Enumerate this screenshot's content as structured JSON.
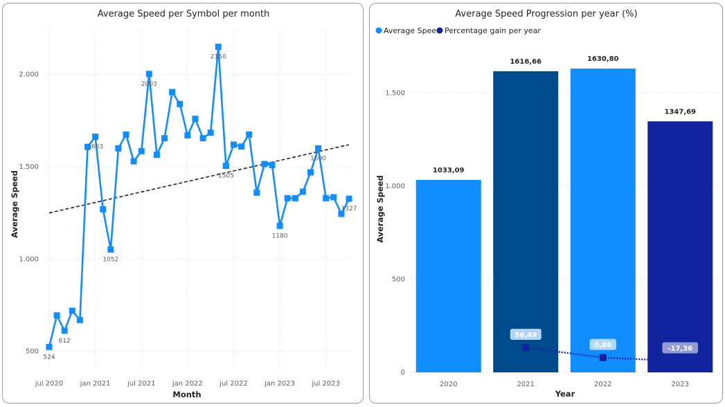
{
  "chart_data": [
    {
      "type": "line",
      "title": "Average Speed per Symbol per month",
      "xlabel": "Month",
      "ylabel": "Average Speed",
      "ylim": [
        450,
        2250
      ],
      "y_ticks": [
        500,
        1000,
        1500,
        2000
      ],
      "y_tick_labels": [
        "500",
        "1.000",
        "1.500",
        "2.000"
      ],
      "x_tick_labels": [
        "jul 2020",
        "jan 2021",
        "jul 2021",
        "jan 2022",
        "jul 2022",
        "jan 2023",
        "jul 2023"
      ],
      "x_tick_index": [
        0,
        6,
        12,
        18,
        24,
        30,
        36
      ],
      "grid": true,
      "trendline": true,
      "trendline_ends": [
        1250,
        1620
      ],
      "color": "#118dff",
      "values": [
        524,
        695,
        612,
        720,
        670,
        1608,
        1663,
        1270,
        1052,
        1600,
        1675,
        1530,
        1585,
        2003,
        1565,
        1655,
        1905,
        1840,
        1670,
        1760,
        1655,
        1685,
        2150,
        1505,
        1620,
        1610,
        1675,
        1360,
        1515,
        1510,
        1180,
        1330,
        1330,
        1365,
        1470,
        1600,
        1330,
        1335,
        1245,
        1327
      ],
      "data_labels": [
        {
          "index": 0,
          "text": "524",
          "pos": "below"
        },
        {
          "index": 2,
          "text": "612",
          "pos": "below"
        },
        {
          "index": 6,
          "text": "1663",
          "pos": "below"
        },
        {
          "index": 8,
          "text": "1052",
          "pos": "below"
        },
        {
          "index": 13,
          "text": "2003",
          "pos": "below"
        },
        {
          "index": 22,
          "text": "2150",
          "pos": "below"
        },
        {
          "index": 23,
          "text": "1505",
          "pos": "below"
        },
        {
          "index": 30,
          "text": "1180",
          "pos": "below"
        },
        {
          "index": 35,
          "text": "1600",
          "pos": "below"
        },
        {
          "index": 39,
          "text": "1327",
          "pos": "below"
        }
      ]
    },
    {
      "type": "bar",
      "title": "Average Speed Progression per year (%)",
      "xlabel": "Year",
      "ylabel": "Average Speed",
      "categories": [
        "2020",
        "2021",
        "2022",
        "2023"
      ],
      "ylim": [
        0,
        1750
      ],
      "y_ticks": [
        0,
        500,
        1000,
        1500
      ],
      "y_tick_labels": [
        "0",
        "500",
        "1.000",
        "1.500"
      ],
      "legend_position": "top-left",
      "series": [
        {
          "name": "Average Speed",
          "color": "#118dff",
          "values": [
            1033.09,
            1616.66,
            1630.8,
            1347.69
          ],
          "labels": [
            "1033,09",
            "1616,66",
            "1630,80",
            "1347,69"
          ],
          "bar_colors": [
            "#118dff",
            "#004b8c",
            "#118dff",
            "#12239e"
          ]
        },
        {
          "name": "Percentage gain per year",
          "color": "#12239e",
          "type": "line",
          "values": [
            null,
            56.49,
            0.88,
            -17.36
          ],
          "labels": [
            "",
            "56,49",
            "0,88",
            "-17,36"
          ]
        }
      ]
    }
  ]
}
